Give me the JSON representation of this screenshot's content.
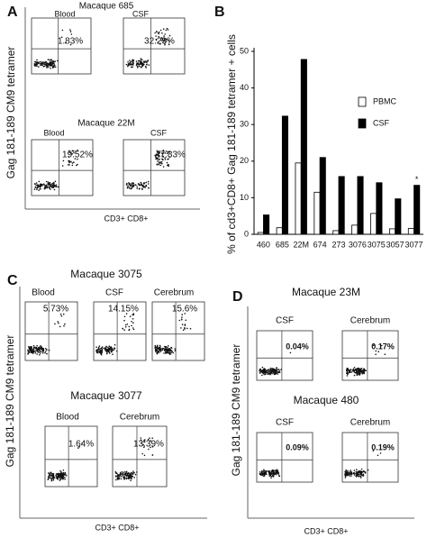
{
  "panels": [
    {
      "letter": "A",
      "y_label": "Gag 181-189 CM9 tetramer",
      "x_label": "CD3+ CD8+",
      "groups": [
        {
          "title": "Macaque 685",
          "plots": [
            {
              "label": "Blood",
              "percent": "1.83%"
            },
            {
              "label": "CSF",
              "percent": "32.29%"
            }
          ]
        },
        {
          "title": "Macaque 22M",
          "plots": [
            {
              "label": "Blood",
              "percent": "19.52%"
            },
            {
              "label": "CSF",
              "percent": "47.83%"
            }
          ]
        }
      ]
    },
    {
      "letter": "C",
      "y_label": "Gag 181-189 CM9 tetramer",
      "x_label": "CD3+ CD8+",
      "groups": [
        {
          "title": "Macaque 3075",
          "plots": [
            {
              "label": "Blood",
              "percent": "5.73%"
            },
            {
              "label": "CSF",
              "percent": "14.15%"
            },
            {
              "label": "Cerebrum",
              "percent": "15.6%"
            }
          ]
        },
        {
          "title": "Macaque 3077",
          "plots": [
            {
              "label": "Blood",
              "percent": "1.64%"
            },
            {
              "label": "Cerebrum",
              "percent": "13.39%"
            }
          ]
        }
      ]
    },
    {
      "letter": "D",
      "y_label": "Gag 181-189 CM9 tetramer",
      "x_label": "CD3+ CD8+",
      "groups": [
        {
          "title": "Macaque 23M",
          "plots": [
            {
              "label": "CSF",
              "percent": "0.04%"
            },
            {
              "label": "Cerebrum",
              "percent": "0.17%"
            }
          ]
        },
        {
          "title": "Macaque 480",
          "plots": [
            {
              "label": "CSF",
              "percent": "0.09%"
            },
            {
              "label": "Cerebrum",
              "percent": "0.19%"
            }
          ]
        }
      ]
    }
  ],
  "chart_data": {
    "type": "bar",
    "label": "B",
    "y_label": "% of cd3+CD8+ Gag 181-189 tetramer + cells",
    "categories": [
      "460",
      "685",
      "22M",
      "674",
      "273",
      "3076",
      "3075",
      "3057",
      "3077"
    ],
    "series": [
      {
        "name": "PBMC",
        "color": "#ffffff",
        "values": [
          0.5,
          1.8,
          19.5,
          11.5,
          1,
          2.5,
          5.7,
          1.5,
          1.6
        ]
      },
      {
        "name": "CSF",
        "color": "#000000",
        "values": [
          5.3,
          32.3,
          47.8,
          21,
          15.8,
          15.8,
          14.1,
          9.7,
          13.4
        ]
      }
    ],
    "annotation": "*",
    "ylim": [
      0,
      50
    ],
    "yticks": [
      0,
      10,
      20,
      30,
      40,
      50
    ]
  }
}
